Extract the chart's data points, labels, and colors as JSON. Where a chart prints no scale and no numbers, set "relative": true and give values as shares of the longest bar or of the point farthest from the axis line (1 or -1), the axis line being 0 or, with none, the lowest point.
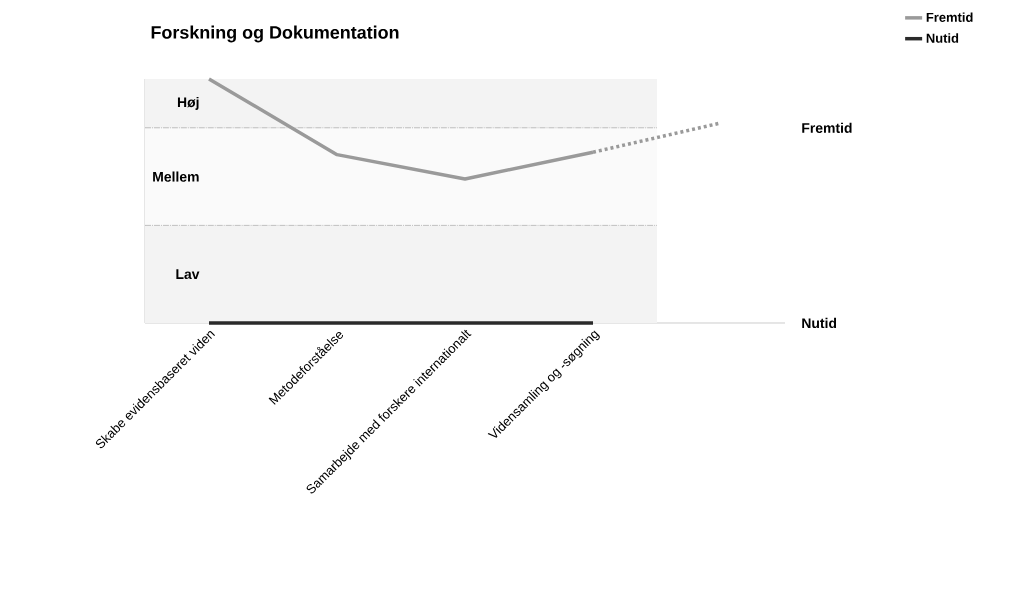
{
  "chart_data": {
    "type": "line",
    "title": "Forskning og Dokumentation",
    "categories": [
      "Skabe evidensbaseret viden",
      "Metodeforståelse",
      "Samarbejde med forskere internationalt",
      "Vidensamling og -søgning",
      null
    ],
    "series": [
      {
        "name": "Fremtid",
        "color": "#9a9a9a",
        "values": [
          1,
          0.69,
          0.59,
          0.7,
          null
        ]
      },
      {
        "name": "Nutid",
        "color": "#2a2a2a",
        "values": [
          0,
          0,
          0,
          0,
          null
        ]
      },
      {
        "color": "#9a9a9a",
        "values": [
          null,
          null,
          null,
          0.7,
          0.82
        ],
        "line_style": "dashed"
      }
    ],
    "relative": true,
    "bands": [
      {
        "axis": "y",
        "from": 0,
        "to": 0.4,
        "label": "Lav",
        "color": "#f3f3f3"
      },
      {
        "axis": "y",
        "from": 0.4,
        "to": 0.8,
        "label": "Mellem",
        "color": "#fafafa"
      },
      {
        "axis": "y",
        "from": 0.8,
        "to": 1,
        "label": "Høj",
        "color": "#f3f3f3"
      }
    ],
    "ref_lines": [
      {
        "axis": "y",
        "value": 0.4,
        "color": "#666666",
        "line_style": "dashed"
      },
      {
        "axis": "y",
        "value": 0.8,
        "color": "#666666",
        "line_style": "dashed"
      }
    ],
    "legend": "top right",
    "annotations": [
      "Fremtid",
      "Nutid"
    ]
  }
}
